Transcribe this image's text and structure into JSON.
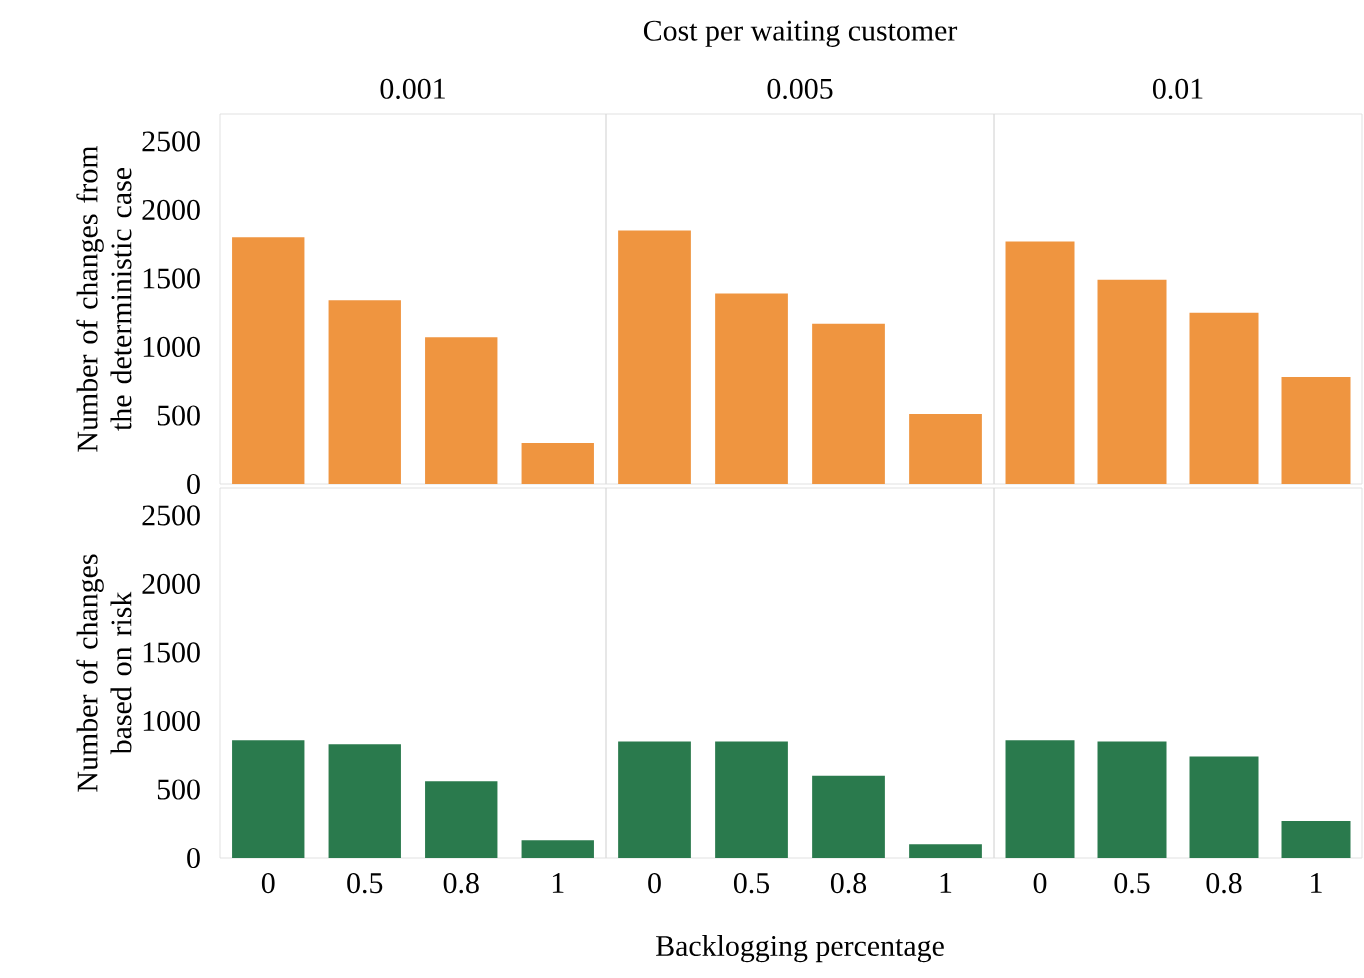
{
  "chart_data": [
    {
      "type": "bar",
      "title": "0.001",
      "ylabel": "Number of changes from the deterministic case",
      "categories": [
        "0",
        "0.5",
        "0.8",
        "1"
      ],
      "values": [
        1800,
        1340,
        1070,
        300
      ],
      "color": "#ef9540",
      "ylim": [
        0,
        2700
      ],
      "yticks": [
        0,
        500,
        1000,
        1500,
        2000,
        2500
      ],
      "tick_labels": "y"
    },
    {
      "type": "bar",
      "title": "0.005",
      "annotations": [
        "Cost per waiting customer"
      ],
      "categories": [
        "0",
        "0.5",
        "0.8",
        "1"
      ],
      "values": [
        1850,
        1390,
        1170,
        510
      ],
      "color": "#ef9540",
      "ylim": [
        0,
        2700
      ],
      "yticks": [
        0,
        500,
        1000,
        1500,
        2000,
        2500
      ],
      "tick_labels": false
    },
    {
      "type": "bar",
      "title": "0.01",
      "categories": [
        "0",
        "0.5",
        "0.8",
        "1"
      ],
      "values": [
        1770,
        1490,
        1250,
        780
      ],
      "color": "#ef9540",
      "ylim": [
        0,
        2700
      ],
      "yticks": [
        0,
        500,
        1000,
        1500,
        2000,
        2500
      ],
      "tick_labels": false
    },
    {
      "type": "bar",
      "ylabel": "Number of changes based on risk",
      "categories": [
        "0",
        "0.5",
        "0.8",
        "1"
      ],
      "values": [
        860,
        830,
        560,
        130
      ],
      "color": "#2a7a4d",
      "ylim": [
        0,
        2700
      ],
      "yticks": [
        0,
        500,
        1000,
        1500,
        2000,
        2500
      ]
    },
    {
      "type": "bar",
      "xlabel": "Backlogging percentage",
      "categories": [
        "0",
        "0.5",
        "0.8",
        "1"
      ],
      "values": [
        850,
        850,
        600,
        100
      ],
      "color": "#2a7a4d",
      "ylim": [
        0,
        2700
      ],
      "yticks": [
        0,
        500,
        1000,
        1500,
        2000,
        2500
      ],
      "tick_labels": "x"
    },
    {
      "type": "bar",
      "categories": [
        "0",
        "0.5",
        "0.8",
        "1"
      ],
      "values": [
        860,
        850,
        740,
        270
      ],
      "color": "#2a7a4d",
      "ylim": [
        0,
        2700
      ],
      "yticks": [
        0,
        500,
        1000,
        1500,
        2000,
        2500
      ],
      "tick_labels": "x"
    }
  ]
}
